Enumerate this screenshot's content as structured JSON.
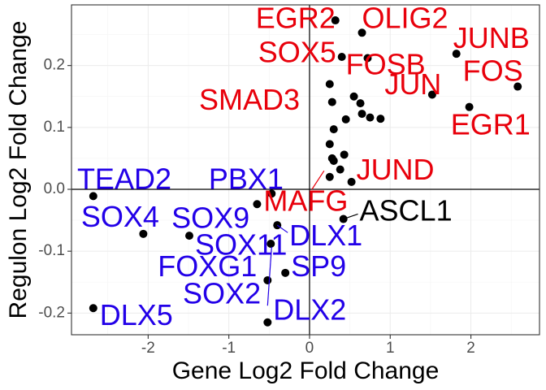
{
  "chart_data": {
    "type": "scatter",
    "xlabel": "Gene Log2 Fold Change",
    "ylabel": "Regulon Log2 Fold Change",
    "xlim": [
      -2.95,
      2.85
    ],
    "ylim": [
      -0.235,
      0.298
    ],
    "x_ticks": [
      -2,
      -1,
      0,
      1,
      2
    ],
    "y_ticks": [
      -0.2,
      -0.1,
      0.0,
      0.1,
      0.2
    ],
    "x_tick_labels": [
      "-2",
      "-1",
      "0",
      "1",
      "2"
    ],
    "y_tick_labels": [
      "-0.2",
      "-0.1",
      "0.0",
      "0.1",
      "0.2"
    ],
    "grid": true,
    "reference_lines": {
      "x": 0,
      "y": 0
    },
    "colors": {
      "up": "#e8000b",
      "down": "#2200e8",
      "neutral": "#000000"
    },
    "points": [
      {
        "x": 0.32,
        "y": 0.273
      },
      {
        "x": 0.65,
        "y": 0.253
      },
      {
        "x": 0.4,
        "y": 0.214
      },
      {
        "x": 0.72,
        "y": 0.212
      },
      {
        "x": 1.82,
        "y": 0.219
      },
      {
        "x": 2.58,
        "y": 0.166
      },
      {
        "x": 1.52,
        "y": 0.153
      },
      {
        "x": 1.98,
        "y": 0.133
      },
      {
        "x": 0.25,
        "y": 0.17
      },
      {
        "x": 0.28,
        "y": 0.141
      },
      {
        "x": 0.55,
        "y": 0.15
      },
      {
        "x": 0.63,
        "y": 0.139
      },
      {
        "x": 0.65,
        "y": 0.122
      },
      {
        "x": 0.75,
        "y": 0.116
      },
      {
        "x": 0.88,
        "y": 0.114
      },
      {
        "x": 0.45,
        "y": 0.113
      },
      {
        "x": 0.3,
        "y": 0.097
      },
      {
        "x": 0.25,
        "y": 0.073
      },
      {
        "x": 0.43,
        "y": 0.056
      },
      {
        "x": 0.28,
        "y": 0.05
      },
      {
        "x": 0.3,
        "y": 0.046
      },
      {
        "x": 0.38,
        "y": 0.032
      },
      {
        "x": 0.25,
        "y": 0.02
      },
      {
        "x": 0.52,
        "y": 0.012
      },
      {
        "x": -0.47,
        "y": -0.007
      },
      {
        "x": -0.65,
        "y": -0.024
      },
      {
        "x": 0.42,
        "y": -0.048
      },
      {
        "x": -0.4,
        "y": -0.058
      },
      {
        "x": -2.68,
        "y": -0.011
      },
      {
        "x": -2.06,
        "y": -0.072
      },
      {
        "x": -1.49,
        "y": -0.075
      },
      {
        "x": -0.48,
        "y": -0.088
      },
      {
        "x": -0.3,
        "y": -0.135
      },
      {
        "x": -0.52,
        "y": -0.147
      },
      {
        "x": -2.68,
        "y": -0.192
      },
      {
        "x": -0.52,
        "y": -0.215
      }
    ],
    "labels": [
      {
        "text": "EGR2",
        "group": "up",
        "x": 0.32,
        "y": 0.273,
        "lx": 0.32,
        "ly": 0.273,
        "anchor": "end"
      },
      {
        "text": "OLIG2",
        "group": "up",
        "x": 0.65,
        "y": 0.253,
        "lx": 0.65,
        "ly": 0.273,
        "anchor": "start"
      },
      {
        "text": "SOX5",
        "group": "up",
        "x": 0.4,
        "y": 0.214,
        "lx": 0.33,
        "ly": 0.218,
        "anchor": "end"
      },
      {
        "text": "FOSB",
        "group": "up",
        "x": 0.72,
        "y": 0.212,
        "lx": 0.45,
        "ly": 0.198,
        "anchor": "start"
      },
      {
        "text": "JUNB",
        "group": "up",
        "x": 1.82,
        "y": 0.219,
        "lx": 1.78,
        "ly": 0.241,
        "anchor": "start"
      },
      {
        "text": "FOS",
        "group": "up",
        "x": 2.58,
        "y": 0.166,
        "lx": 1.9,
        "ly": 0.188,
        "anchor": "start"
      },
      {
        "text": "JUN",
        "group": "up",
        "x": 1.52,
        "y": 0.153,
        "lx": 0.93,
        "ly": 0.166,
        "anchor": "start"
      },
      {
        "text": "EGR1",
        "group": "up",
        "x": 1.98,
        "y": 0.133,
        "lx": 1.75,
        "ly": 0.101,
        "anchor": "start"
      },
      {
        "text": "SMAD3",
        "group": "up",
        "x": 0.28,
        "y": 0.141,
        "lx": -0.12,
        "ly": 0.141,
        "anchor": "end"
      },
      {
        "text": "JUND",
        "group": "up",
        "x": 0.52,
        "y": 0.012,
        "lx": 0.58,
        "ly": 0.028,
        "anchor": "start"
      },
      {
        "text": "MAFG",
        "group": "up",
        "x": 0.03,
        "y": 0.0,
        "lx": -0.57,
        "ly": -0.022,
        "anchor": "start",
        "leader": [
          [
            0.03,
            0.0
          ],
          [
            0.18,
            0.03
          ]
        ]
      },
      {
        "text": "ASCL1",
        "group": "neutral",
        "x": 0.42,
        "y": -0.048,
        "lx": 0.62,
        "ly": -0.038,
        "anchor": "start",
        "leader": [
          [
            0.42,
            -0.048
          ],
          [
            0.6,
            -0.04
          ]
        ]
      },
      {
        "text": "TEAD2",
        "group": "down",
        "x": -2.68,
        "y": -0.011,
        "lx": -2.88,
        "ly": 0.013,
        "anchor": "start"
      },
      {
        "text": "PBX1",
        "group": "down",
        "x": -0.47,
        "y": -0.007,
        "lx": -1.25,
        "ly": 0.013,
        "anchor": "start"
      },
      {
        "text": "SOX4",
        "group": "down",
        "x": -2.06,
        "y": -0.072,
        "lx": -2.83,
        "ly": -0.048,
        "anchor": "start"
      },
      {
        "text": "SOX9",
        "group": "down",
        "x": -1.49,
        "y": -0.075,
        "lx": -1.71,
        "ly": -0.05,
        "anchor": "start"
      },
      {
        "text": "SOX11",
        "group": "down",
        "x": -0.48,
        "y": -0.088,
        "lx": -1.42,
        "ly": -0.093,
        "anchor": "start"
      },
      {
        "text": "DLX1",
        "group": "down",
        "x": -0.4,
        "y": -0.058,
        "lx": -0.25,
        "ly": -0.078,
        "anchor": "start",
        "leader": [
          [
            -0.4,
            -0.058
          ],
          [
            -0.27,
            -0.07
          ]
        ]
      },
      {
        "text": "FOXG1",
        "group": "down",
        "x": -0.52,
        "y": -0.147,
        "lx": -1.88,
        "ly": -0.128,
        "anchor": "start"
      },
      {
        "text": "SP9",
        "group": "down",
        "x": -0.3,
        "y": -0.135,
        "lx": -0.23,
        "ly": -0.128,
        "anchor": "start"
      },
      {
        "text": "SOX2",
        "group": "down",
        "x": -0.52,
        "y": -0.147,
        "lx": -1.57,
        "ly": -0.172,
        "anchor": "start",
        "leader": [
          [
            -0.52,
            -0.188
          ],
          [
            -0.47,
            -0.093
          ]
        ]
      },
      {
        "text": "DLX2",
        "group": "down",
        "x": -0.52,
        "y": -0.215,
        "lx": -0.45,
        "ly": -0.198,
        "anchor": "start"
      },
      {
        "text": "DLX5",
        "group": "down",
        "x": -2.68,
        "y": -0.192,
        "lx": -2.6,
        "ly": -0.207,
        "anchor": "start"
      }
    ]
  }
}
